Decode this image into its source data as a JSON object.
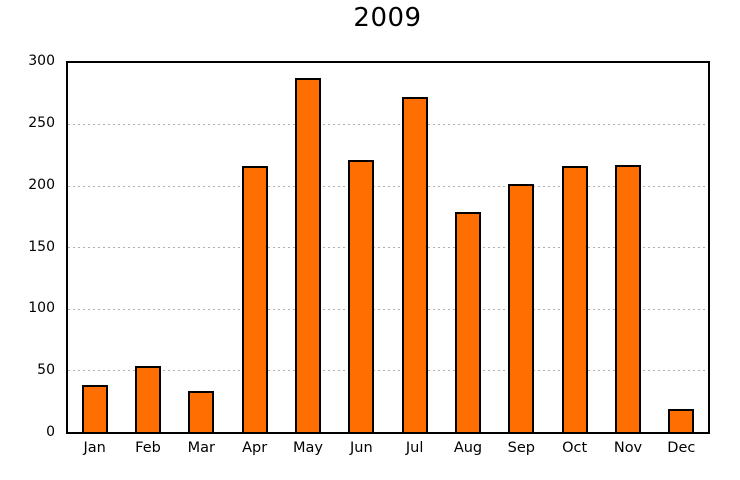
{
  "chart_data": {
    "type": "bar",
    "title": "2009",
    "categories": [
      "Jan",
      "Feb",
      "Mar",
      "Apr",
      "May",
      "Jun",
      "Jul",
      "Aug",
      "Sep",
      "Oct",
      "Nov",
      "Dec"
    ],
    "values": [
      38,
      54,
      33,
      216,
      288,
      221,
      272,
      179,
      202,
      216,
      217,
      19
    ],
    "xlabel": "",
    "ylabel": "",
    "ylim": [
      0,
      300
    ],
    "yticks": [
      0,
      50,
      100,
      150,
      200,
      250,
      300
    ],
    "grid": "horizontal dotted lines at each y tick except 0 and 300",
    "legend_position": "none",
    "bar_fill_color": "#ff6e00",
    "bar_border_color": "#000000",
    "grid_color": "#b0b0b0",
    "frame_color": "#000000",
    "text_color": "#000000",
    "background_color": "#ffffff"
  }
}
